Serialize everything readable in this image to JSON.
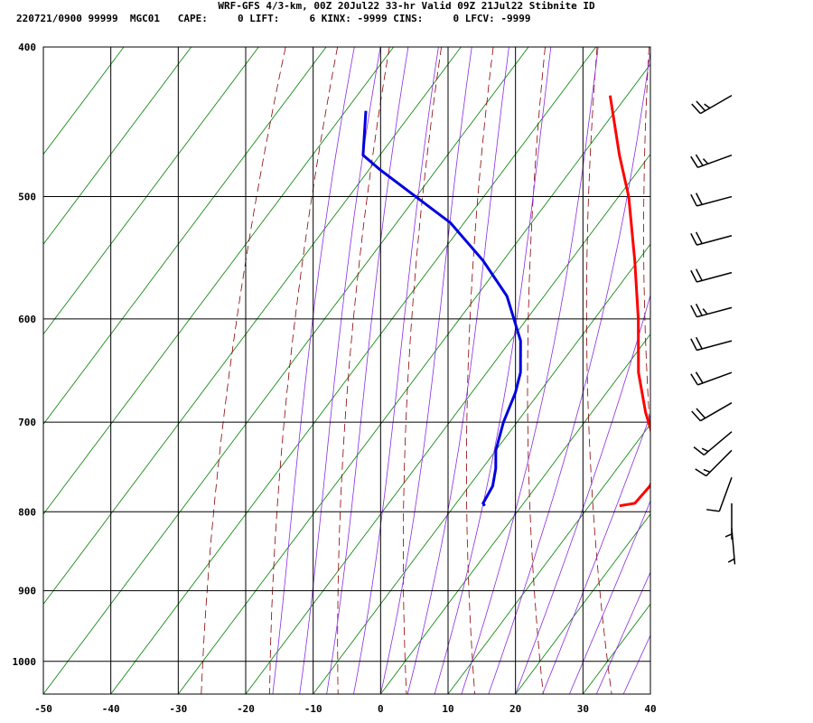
{
  "header": {
    "line1": "WRF-GFS 4/3-km, 00Z 20Jul22 33-hr Valid 09Z 21Jul22 Stibnite ID",
    "line2": "220721/0900 99999  MGC01   CAPE:     0 LIFT:     6 KINX: -9999 CINS:     0 LFCV: -9999"
  },
  "chart_data": {
    "type": "line",
    "subtype": "skew-t",
    "xlabel": "",
    "ylabel": "",
    "xlim": [
      -50,
      40
    ],
    "ylim": [
      1050,
      400
    ],
    "yscale": "log",
    "x_ticks": [
      -50,
      -40,
      -30,
      -20,
      -10,
      0,
      10,
      20,
      30,
      40
    ],
    "y_ticks": [
      400,
      500,
      600,
      700,
      800,
      900,
      1000
    ],
    "grid": true,
    "colors": {
      "temperature": "#ff0000",
      "dewpoint": "#0000e0",
      "isotherm": "#008000",
      "dry_adiabat": "#8b0000",
      "moist_adiabat": "#8a2be2",
      "grid": "#000000"
    },
    "series": [
      {
        "key": "temperature",
        "color": "#ff0000",
        "points": [
          {
            "p": 793,
            "t": 14.5
          },
          {
            "p": 790,
            "t": 16.5
          },
          {
            "p": 770,
            "t": 16.8
          },
          {
            "p": 750,
            "t": 16.0
          },
          {
            "p": 730,
            "t": 13.5
          },
          {
            "p": 710,
            "t": 11.0
          },
          {
            "p": 690,
            "t": 8.0
          },
          {
            "p": 650,
            "t": 2.5
          },
          {
            "p": 600,
            "t": -3.5
          },
          {
            "p": 550,
            "t": -10.5
          },
          {
            "p": 500,
            "t": -18.5
          },
          {
            "p": 470,
            "t": -24.5
          },
          {
            "p": 430,
            "t": -32.5
          }
        ]
      },
      {
        "key": "dewpoint",
        "color": "#0000e0",
        "points": [
          {
            "p": 793,
            "t": -5.5
          },
          {
            "p": 790,
            "t": -6.0
          },
          {
            "p": 770,
            "t": -6.5
          },
          {
            "p": 750,
            "t": -8.0
          },
          {
            "p": 730,
            "t": -10.0
          },
          {
            "p": 700,
            "t": -12.0
          },
          {
            "p": 670,
            "t": -13.5
          },
          {
            "p": 650,
            "t": -15.0
          },
          {
            "p": 620,
            "t": -18.5
          },
          {
            "p": 580,
            "t": -25.5
          },
          {
            "p": 550,
            "t": -33.0
          },
          {
            "p": 520,
            "t": -42.0
          },
          {
            "p": 480,
            "t": -58.5
          },
          {
            "p": 470,
            "t": -62.5
          },
          {
            "p": 440,
            "t": -67.0
          }
        ]
      }
    ],
    "wind_barbs": [
      {
        "p": 430,
        "dir": 240,
        "speed_kt": 25
      },
      {
        "p": 470,
        "dir": 250,
        "speed_kt": 25
      },
      {
        "p": 500,
        "dir": 255,
        "speed_kt": 20
      },
      {
        "p": 530,
        "dir": 255,
        "speed_kt": 20
      },
      {
        "p": 560,
        "dir": 255,
        "speed_kt": 20
      },
      {
        "p": 590,
        "dir": 255,
        "speed_kt": 25
      },
      {
        "p": 620,
        "dir": 255,
        "speed_kt": 20
      },
      {
        "p": 650,
        "dir": 250,
        "speed_kt": 20
      },
      {
        "p": 680,
        "dir": 240,
        "speed_kt": 20
      },
      {
        "p": 710,
        "dir": 230,
        "speed_kt": 15
      },
      {
        "p": 730,
        "dir": 225,
        "speed_kt": 15
      },
      {
        "p": 760,
        "dir": 200,
        "speed_kt": 10
      },
      {
        "p": 790,
        "dir": 180,
        "speed_kt": 5
      },
      {
        "p": 820,
        "dir": 175,
        "speed_kt": 5
      }
    ]
  }
}
